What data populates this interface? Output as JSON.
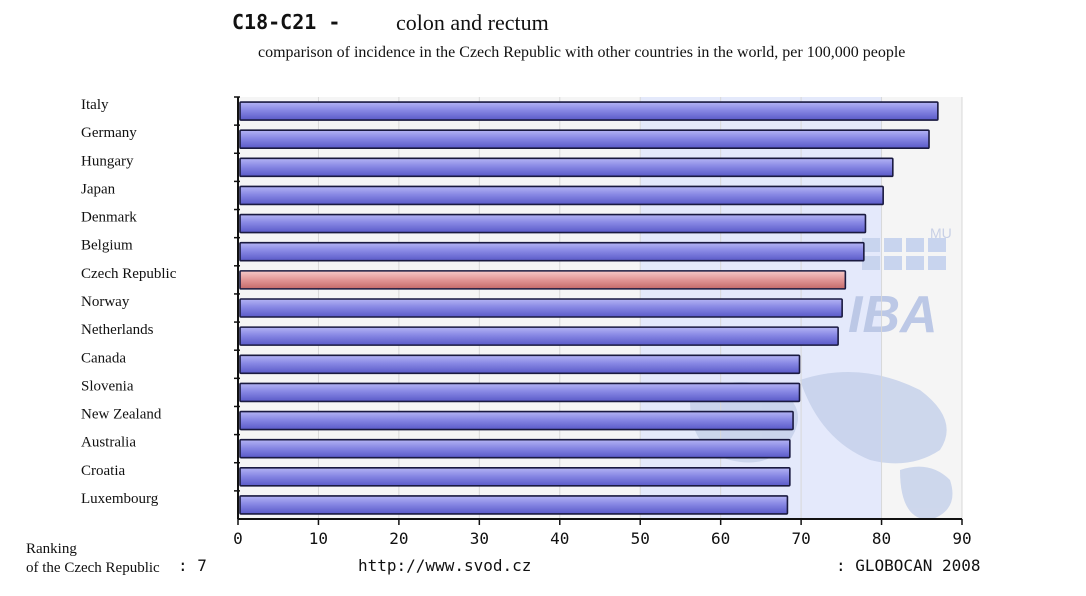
{
  "header": {
    "code": "C18-C21 -",
    "site": "colon and rectum",
    "subtitle": "comparison of incidence in the Czech Republic with other countries in the world, per 100,000 people"
  },
  "footer": {
    "ranking_label_line1": "Ranking",
    "ranking_label_line2": "of the Czech Republic",
    "ranking_value": ": 7",
    "url": "http://www.svod.cz",
    "source": ": GLOBOCAN 2008"
  },
  "watermark": {
    "text": "IBA",
    "small_text": "MU"
  },
  "chart_data": {
    "type": "bar",
    "orientation": "horizontal",
    "categories": [
      "Italy",
      "Germany",
      "Hungary",
      "Japan",
      "Denmark",
      "Belgium",
      "Czech Republic",
      "Norway",
      "Netherlands",
      "Canada",
      "Slovenia",
      "New Zealand",
      "Australia",
      "Croatia",
      "Luxembourg"
    ],
    "values": [
      87.0,
      85.9,
      81.4,
      80.2,
      78.0,
      77.8,
      75.5,
      75.1,
      74.6,
      69.8,
      69.8,
      69.0,
      68.6,
      68.6,
      68.3
    ],
    "highlight": "Czech Republic",
    "xlim": [
      0,
      90
    ],
    "xticks": [
      0,
      10,
      20,
      30,
      40,
      50,
      60,
      70,
      80,
      90
    ],
    "grid": true,
    "colors": {
      "bar": "#8c8ce6",
      "highlight": "#e89a9a",
      "outline": "#1a1a40"
    }
  }
}
